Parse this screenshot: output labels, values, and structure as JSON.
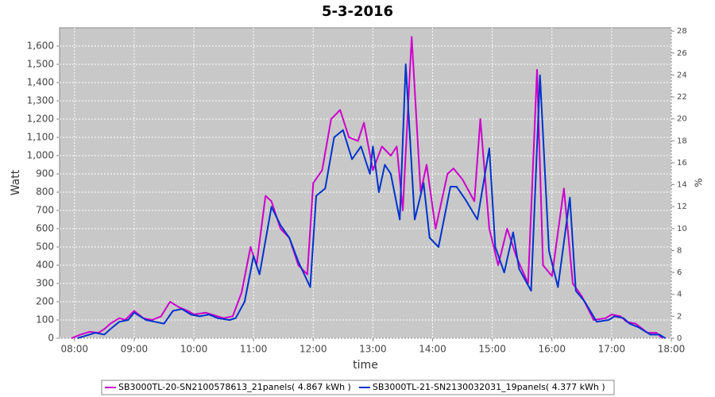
{
  "chart_data": {
    "type": "line",
    "title": "5-3-2016",
    "xlabel": "time",
    "ylabel": "Watt",
    "y2label": "%",
    "xlim": [
      7.75,
      18
    ],
    "xticks": [
      {
        "value": 8,
        "label": "08:00"
      },
      {
        "value": 9,
        "label": "09:00"
      },
      {
        "value": 10,
        "label": "10:00"
      },
      {
        "value": 11,
        "label": "11:00"
      },
      {
        "value": 12,
        "label": "12:00"
      },
      {
        "value": 13,
        "label": "13:00"
      },
      {
        "value": 14,
        "label": "14:00"
      },
      {
        "value": 15,
        "label": "15:00"
      },
      {
        "value": 16,
        "label": "16:00"
      },
      {
        "value": 17,
        "label": "17:00"
      },
      {
        "value": 18,
        "label": "18:00"
      }
    ],
    "ylim": [
      0,
      1700
    ],
    "yticks": [
      0,
      100,
      200,
      300,
      400,
      500,
      600,
      700,
      800,
      900,
      {
        "value": 1000,
        "label": "1,000"
      },
      {
        "value": 1100,
        "label": "1,100"
      },
      {
        "value": 1200,
        "label": "1,200"
      },
      {
        "value": 1300,
        "label": "1,300"
      },
      {
        "value": 1400,
        "label": "1,400"
      },
      {
        "value": 1500,
        "label": "1,500"
      },
      {
        "value": 1600,
        "label": "1,600"
      }
    ],
    "y2lim": [
      0,
      28.3
    ],
    "y2ticks": [
      0,
      2,
      4,
      6,
      8,
      10,
      12,
      14,
      16,
      18,
      20,
      22,
      24,
      26,
      28
    ],
    "grid": true,
    "legend": "bottom",
    "series": [
      {
        "name": "SB3000TL-20-SN2100578613_21panels( 4.867 kWh )",
        "color": "#cc00cc",
        "x": [
          7.95,
          8.1,
          8.25,
          8.4,
          8.5,
          8.6,
          8.75,
          8.85,
          9.0,
          9.15,
          9.3,
          9.45,
          9.6,
          9.75,
          9.9,
          10.0,
          10.2,
          10.4,
          10.5,
          10.65,
          10.8,
          10.95,
          11.05,
          11.2,
          11.3,
          11.45,
          11.6,
          11.75,
          11.9,
          12.0,
          12.15,
          12.3,
          12.45,
          12.6,
          12.75,
          12.85,
          13.0,
          13.15,
          13.3,
          13.4,
          13.5,
          13.65,
          13.8,
          13.9,
          14.05,
          14.25,
          14.35,
          14.5,
          14.7,
          14.8,
          14.95,
          15.1,
          15.25,
          15.4,
          15.6,
          15.75,
          15.85,
          16.0,
          16.2,
          16.35,
          16.5,
          16.7,
          16.9,
          17.0,
          17.15,
          17.25,
          17.4,
          17.6,
          17.75,
          17.85
        ],
        "values": [
          0,
          20,
          35,
          30,
          50,
          80,
          110,
          100,
          150,
          110,
          100,
          120,
          200,
          170,
          150,
          130,
          140,
          120,
          110,
          120,
          250,
          500,
          400,
          780,
          750,
          600,
          550,
          400,
          350,
          850,
          920,
          1200,
          1250,
          1100,
          1080,
          1180,
          920,
          1050,
          1000,
          1050,
          700,
          1650,
          800,
          950,
          600,
          900,
          930,
          870,
          750,
          1200,
          600,
          400,
          600,
          450,
          300,
          1470,
          400,
          340,
          820,
          300,
          230,
          100,
          110,
          130,
          120,
          90,
          80,
          30,
          30,
          0
        ]
      },
      {
        "name": "SB3000TL-21-SN2130032031_19panels( 4.377 kWh )",
        "color": "#0033cc",
        "x": [
          8.05,
          8.2,
          8.35,
          8.5,
          8.6,
          8.75,
          8.9,
          9.0,
          9.05,
          9.2,
          9.35,
          9.5,
          9.65,
          9.8,
          9.95,
          10.1,
          10.25,
          10.4,
          10.6,
          10.7,
          10.85,
          11.0,
          11.1,
          11.3,
          11.45,
          11.6,
          11.75,
          11.95,
          12.05,
          12.2,
          12.35,
          12.5,
          12.65,
          12.8,
          12.95,
          13.0,
          13.1,
          13.2,
          13.3,
          13.45,
          13.55,
          13.7,
          13.85,
          13.95,
          14.1,
          14.3,
          14.4,
          14.55,
          14.75,
          14.95,
          15.05,
          15.2,
          15.35,
          15.45,
          15.65,
          15.8,
          15.95,
          16.1,
          16.3,
          16.4,
          16.55,
          16.75,
          16.95,
          17.05,
          17.2,
          17.3,
          17.45,
          17.65,
          17.8,
          17.9
        ],
        "values": [
          0,
          15,
          30,
          20,
          50,
          90,
          100,
          140,
          130,
          100,
          90,
          80,
          150,
          160,
          130,
          120,
          130,
          110,
          100,
          110,
          200,
          450,
          350,
          720,
          620,
          550,
          420,
          280,
          780,
          820,
          1100,
          1140,
          980,
          1050,
          900,
          1050,
          800,
          950,
          900,
          650,
          1500,
          650,
          850,
          550,
          500,
          830,
          830,
          760,
          650,
          1040,
          500,
          360,
          580,
          380,
          260,
          1440,
          480,
          280,
          770,
          260,
          200,
          90,
          100,
          120,
          110,
          80,
          60,
          20,
          20,
          0
        ]
      }
    ]
  }
}
